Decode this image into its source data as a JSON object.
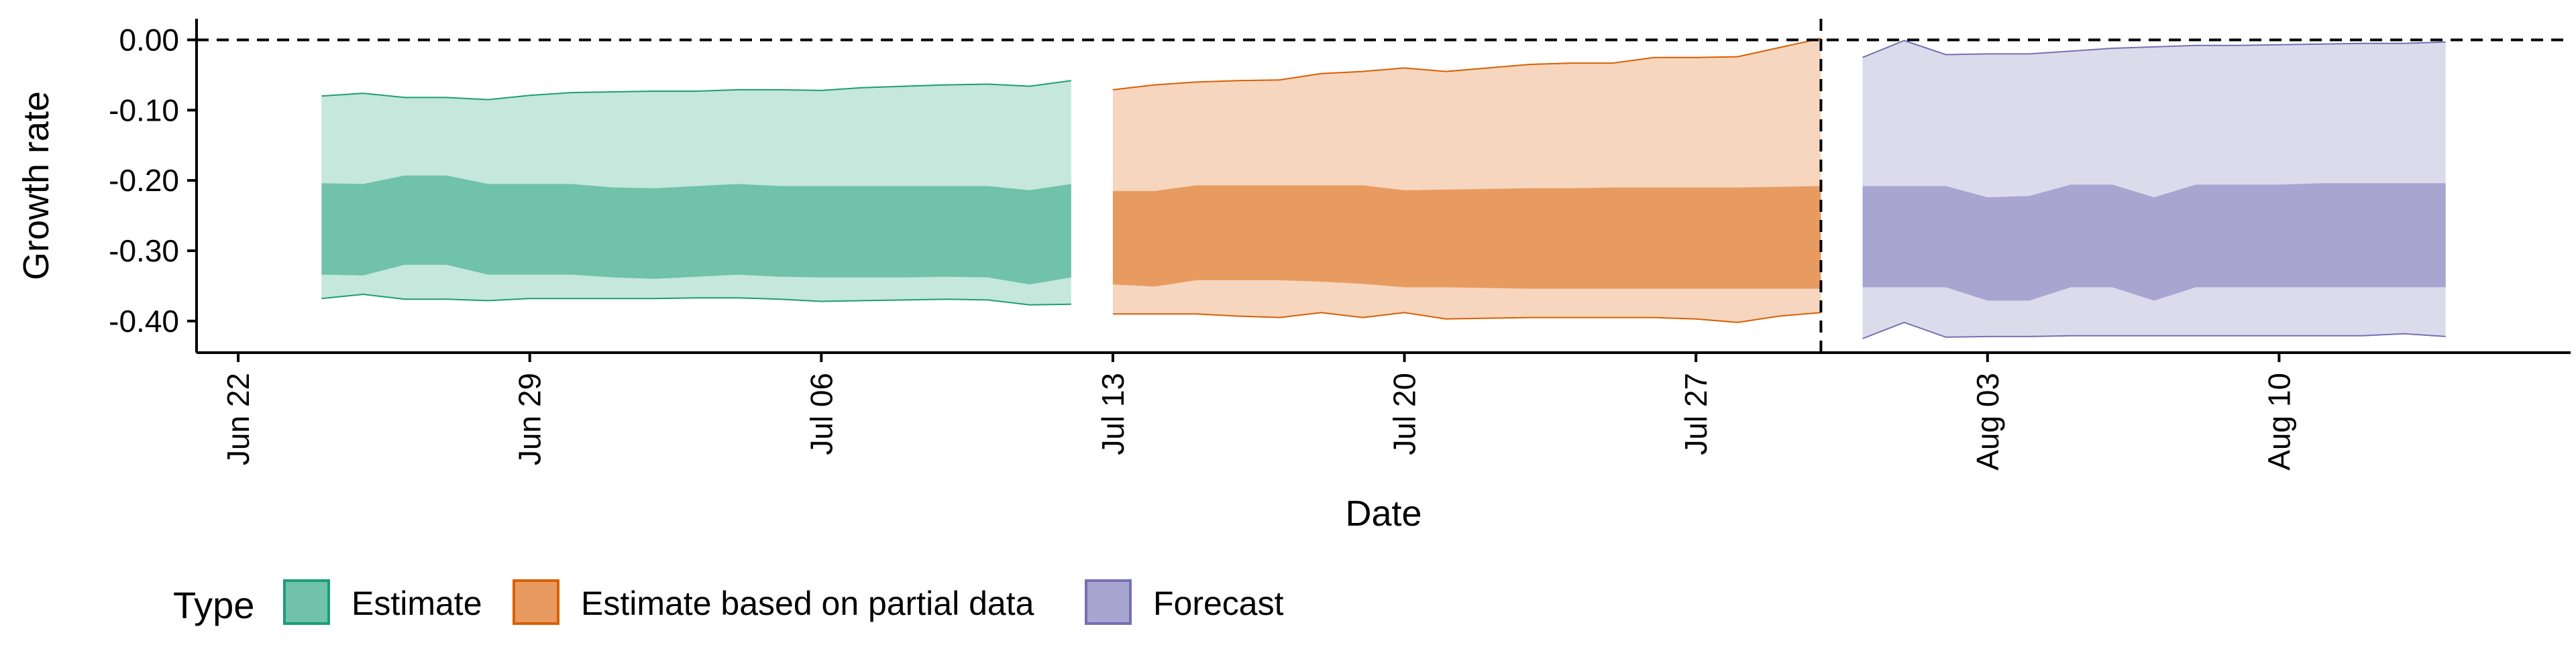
{
  "chart_data": {
    "type": "area",
    "title": "",
    "xlabel": "Date",
    "ylabel": "Growth rate",
    "x_axis": {
      "type": "date",
      "range": [
        "2020-06-21",
        "2020-08-17"
      ],
      "ticks": [
        {
          "date": "2020-06-22",
          "label": "Jun 22"
        },
        {
          "date": "2020-06-29",
          "label": "Jun 29"
        },
        {
          "date": "2020-07-06",
          "label": "Jul 06"
        },
        {
          "date": "2020-07-13",
          "label": "Jul 13"
        },
        {
          "date": "2020-07-20",
          "label": "Jul 20"
        },
        {
          "date": "2020-07-27",
          "label": "Jul 27"
        },
        {
          "date": "2020-08-03",
          "label": "Aug 03"
        },
        {
          "date": "2020-08-10",
          "label": "Aug 10"
        }
      ]
    },
    "y_axis": {
      "range": [
        -0.445,
        0.03
      ],
      "ticks": [
        {
          "value": 0.0,
          "label": "0.00"
        },
        {
          "value": -0.1,
          "label": "-0.10"
        },
        {
          "value": -0.2,
          "label": "-0.20"
        },
        {
          "value": -0.3,
          "label": "-0.30"
        },
        {
          "value": -0.4,
          "label": "-0.40"
        }
      ]
    },
    "grid": false,
    "reference_lines": [
      {
        "axis": "y",
        "value": 0.0,
        "style": "dashed"
      },
      {
        "axis": "x",
        "date": "2020-07-30",
        "style": "dashed"
      }
    ],
    "legend": {
      "title": "Type",
      "position": "bottom-left",
      "items": [
        {
          "label": "Estimate",
          "fill": "#70c2a9",
          "border": "#1b9e77"
        },
        {
          "label": "Estimate based on partial data",
          "fill": "#e89b61",
          "border": "#d95f02"
        },
        {
          "label": "Forecast",
          "fill": "#a9a5d1",
          "border": "#7570b3"
        }
      ]
    },
    "series": [
      {
        "type": "Estimate",
        "outer_fill": "#c5e7dc",
        "inner_fill": "#70c2a9",
        "line_color": "#1b9e77",
        "dates": [
          "2020-06-24",
          "2020-06-25",
          "2020-06-26",
          "2020-06-27",
          "2020-06-28",
          "2020-06-29",
          "2020-06-30",
          "2020-07-01",
          "2020-07-02",
          "2020-07-03",
          "2020-07-04",
          "2020-07-05",
          "2020-07-06",
          "2020-07-07",
          "2020-07-08",
          "2020-07-09",
          "2020-07-10",
          "2020-07-11",
          "2020-07-12"
        ],
        "outer_upper": [
          -0.08,
          -0.076,
          -0.082,
          -0.082,
          -0.085,
          -0.079,
          -0.075,
          -0.074,
          -0.073,
          -0.073,
          -0.071,
          -0.071,
          -0.072,
          -0.068,
          -0.066,
          -0.064,
          -0.063,
          -0.066,
          -0.058
        ],
        "outer_lower": [
          -0.368,
          -0.362,
          -0.369,
          -0.369,
          -0.371,
          -0.368,
          -0.368,
          -0.368,
          -0.368,
          -0.367,
          -0.367,
          -0.369,
          -0.372,
          -0.371,
          -0.37,
          -0.369,
          -0.37,
          -0.377,
          -0.376
        ],
        "inner_upper": [
          -0.204,
          -0.205,
          -0.193,
          -0.193,
          -0.205,
          -0.205,
          -0.205,
          -0.21,
          -0.211,
          -0.208,
          -0.205,
          -0.208,
          -0.208,
          -0.208,
          -0.208,
          -0.208,
          -0.208,
          -0.214,
          -0.205
        ],
        "inner_lower": [
          -0.334,
          -0.335,
          -0.32,
          -0.32,
          -0.334,
          -0.334,
          -0.334,
          -0.338,
          -0.34,
          -0.337,
          -0.334,
          -0.337,
          -0.338,
          -0.338,
          -0.338,
          -0.337,
          -0.338,
          -0.348,
          -0.338
        ]
      },
      {
        "type": "Estimate based on partial data",
        "outer_fill": "#f6d6bf",
        "inner_fill": "#e89b61",
        "line_color": "#d95f02",
        "dates": [
          "2020-07-13",
          "2020-07-14",
          "2020-07-15",
          "2020-07-16",
          "2020-07-17",
          "2020-07-18",
          "2020-07-19",
          "2020-07-20",
          "2020-07-21",
          "2020-07-22",
          "2020-07-23",
          "2020-07-24",
          "2020-07-25",
          "2020-07-26",
          "2020-07-27",
          "2020-07-28",
          "2020-07-29",
          "2020-07-30"
        ],
        "outer_upper": [
          -0.071,
          -0.064,
          -0.06,
          -0.058,
          -0.057,
          -0.048,
          -0.045,
          -0.04,
          -0.045,
          -0.04,
          -0.035,
          -0.033,
          -0.033,
          -0.025,
          -0.025,
          -0.024,
          -0.011,
          0.002
        ],
        "outer_lower": [
          -0.39,
          -0.39,
          -0.39,
          -0.393,
          -0.395,
          -0.388,
          -0.395,
          -0.388,
          -0.397,
          -0.396,
          -0.395,
          -0.395,
          -0.395,
          -0.395,
          -0.397,
          -0.402,
          -0.393,
          -0.388
        ],
        "inner_upper": [
          -0.215,
          -0.215,
          -0.207,
          -0.207,
          -0.207,
          -0.207,
          -0.207,
          -0.214,
          -0.213,
          -0.212,
          -0.211,
          -0.211,
          -0.21,
          -0.21,
          -0.21,
          -0.21,
          -0.209,
          -0.208
        ],
        "inner_lower": [
          -0.348,
          -0.351,
          -0.342,
          -0.342,
          -0.342,
          -0.344,
          -0.347,
          -0.352,
          -0.352,
          -0.353,
          -0.354,
          -0.354,
          -0.354,
          -0.354,
          -0.354,
          -0.354,
          -0.354,
          -0.354
        ]
      },
      {
        "type": "Forecast",
        "outer_fill": "#dcdbec",
        "inner_fill": "#a9a5d1",
        "line_color": "#7570b3",
        "dates": [
          "2020-07-31",
          "2020-08-01",
          "2020-08-02",
          "2020-08-03",
          "2020-08-04",
          "2020-08-05",
          "2020-08-06",
          "2020-08-07",
          "2020-08-08",
          "2020-08-09",
          "2020-08-10",
          "2020-08-11",
          "2020-08-12",
          "2020-08-13",
          "2020-08-14"
        ],
        "outer_upper": [
          -0.025,
          -0.001,
          -0.021,
          -0.02,
          -0.02,
          -0.016,
          -0.012,
          -0.01,
          -0.008,
          -0.008,
          -0.007,
          -0.006,
          -0.005,
          -0.005,
          -0.003
        ],
        "outer_lower": [
          -0.425,
          -0.402,
          -0.423,
          -0.422,
          -0.422,
          -0.421,
          -0.421,
          -0.421,
          -0.421,
          -0.421,
          -0.421,
          -0.421,
          -0.421,
          -0.418,
          -0.422
        ],
        "inner_upper": [
          -0.208,
          -0.208,
          -0.208,
          -0.224,
          -0.222,
          -0.206,
          -0.206,
          -0.224,
          -0.206,
          -0.206,
          -0.206,
          -0.204,
          -0.204,
          -0.204,
          -0.204
        ],
        "inner_lower": [
          -0.352,
          -0.352,
          -0.352,
          -0.371,
          -0.371,
          -0.352,
          -0.352,
          -0.371,
          -0.352,
          -0.352,
          -0.352,
          -0.352,
          -0.352,
          -0.352,
          -0.352
        ]
      }
    ]
  }
}
